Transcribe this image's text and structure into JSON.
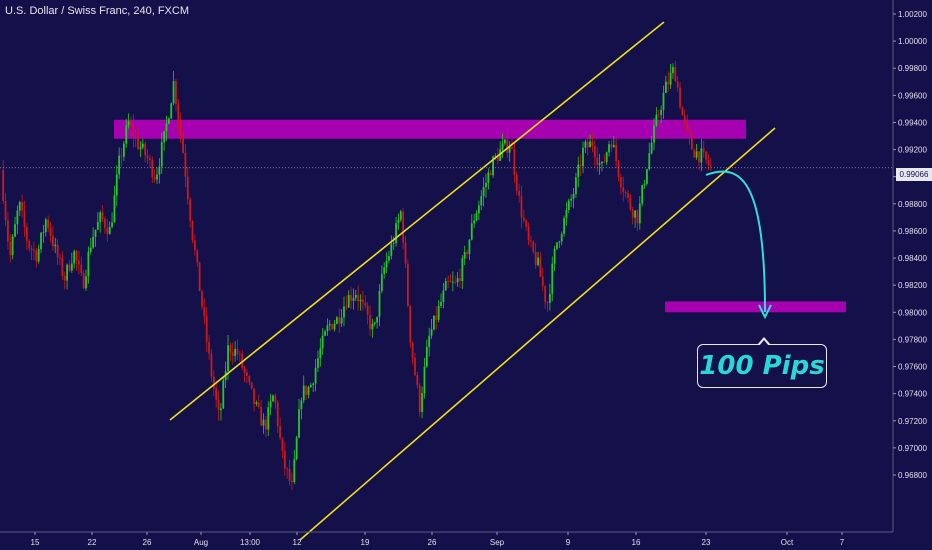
{
  "chart_data": {
    "type": "candlestick",
    "title": "U.S. Dollar / Swiss Franc, 240, FXCM",
    "x_tick_labels": [
      "15",
      "22",
      "26",
      "Aug",
      "13:00",
      "12",
      "19",
      "26",
      "Sep",
      "9",
      "16",
      "23",
      "Oct",
      "7"
    ],
    "y_tick_labels": [
      "1.00200",
      "1.00000",
      "0.99800",
      "0.99600",
      "0.99400",
      "0.99200",
      "0.99000",
      "0.98800",
      "0.98600",
      "0.98400",
      "0.98200",
      "0.98000",
      "0.97800",
      "0.97600",
      "0.97400",
      "0.97200",
      "0.97000",
      "0.96800"
    ],
    "ylim": [
      0.9665,
      1.0026
    ],
    "y_ticks": [
      1.002,
      1.0,
      0.998,
      0.996,
      0.994,
      0.992,
      0.99,
      0.988,
      0.986,
      0.984,
      0.982,
      0.98,
      0.978,
      0.976,
      0.974,
      0.972,
      0.97,
      0.968
    ],
    "current_price": "0.99066",
    "current_price_value": 0.99066,
    "bullish_color": "#22cc22",
    "bearish_color": "#d01818",
    "grid": false,
    "price_path": [
      [
        0.9905,
        0.9905
      ],
      [
        0.986,
        0.984
      ],
      [
        0.987,
        0.988
      ],
      [
        0.983,
        0.985
      ],
      [
        0.9825,
        0.9842
      ],
      [
        0.986,
        0.987
      ],
      [
        0.983,
        0.9845
      ],
      [
        0.981,
        0.9825
      ],
      [
        0.9835,
        0.9845
      ],
      [
        0.981,
        0.982
      ],
      [
        0.984,
        0.9855
      ],
      [
        0.986,
        0.987
      ],
      [
        0.985,
        0.986
      ],
      [
        0.99,
        0.991
      ],
      [
        0.993,
        0.994
      ],
      [
        0.992,
        0.9925
      ],
      [
        0.991,
        0.9915
      ],
      [
        0.99,
        0.99
      ],
      [
        0.992,
        0.993
      ],
      [
        0.9965,
        0.997
      ],
      [
        0.993,
        0.992
      ],
      [
        0.988,
        0.986
      ],
      [
        0.982,
        0.981
      ],
      [
        0.978,
        0.976
      ],
      [
        0.973,
        0.972
      ],
      [
        0.9755,
        0.9775
      ],
      [
        0.976,
        0.977
      ],
      [
        0.974,
        0.975
      ],
      [
        0.974,
        0.973
      ],
      [
        0.972,
        0.9715
      ],
      [
        0.973,
        0.974
      ],
      [
        0.97,
        0.969
      ],
      [
        0.968,
        0.967
      ],
      [
        0.972,
        0.974
      ],
      [
        0.973,
        0.9745
      ],
      [
        0.976,
        0.977
      ],
      [
        0.978,
        0.979
      ],
      [
        0.979,
        0.9795
      ],
      [
        0.98,
        0.981
      ],
      [
        0.9805,
        0.9815
      ],
      [
        0.979,
        0.98
      ],
      [
        0.979,
        0.9785
      ],
      [
        0.982,
        0.983
      ],
      [
        0.9835,
        0.985
      ],
      [
        0.987,
        0.9875
      ],
      [
        0.98,
        0.978
      ],
      [
        0.974,
        0.973
      ],
      [
        0.977,
        0.978
      ],
      [
        0.979,
        0.98
      ],
      [
        0.981,
        0.982
      ],
      [
        0.9815,
        0.982
      ],
      [
        0.983,
        0.984
      ],
      [
        0.986,
        0.987
      ],
      [
        0.988,
        0.989
      ],
      [
        0.99,
        0.991
      ],
      [
        0.991,
        0.992
      ],
      [
        0.992,
        0.9925
      ],
      [
        0.989,
        0.988
      ],
      [
        0.986,
        0.985
      ],
      [
        0.9845,
        0.9835
      ],
      [
        0.981,
        0.9805
      ],
      [
        0.984,
        0.985
      ],
      [
        0.986,
        0.987
      ],
      [
        0.988,
        0.989
      ],
      [
        0.991,
        0.992
      ],
      [
        0.992,
        0.9925
      ],
      [
        0.99,
        0.9905
      ],
      [
        0.992,
        0.993
      ],
      [
        0.991,
        0.99
      ],
      [
        0.989,
        0.988
      ],
      [
        0.988,
        0.987
      ],
      [
        0.99,
        0.991
      ],
      [
        0.993,
        0.994
      ],
      [
        0.995,
        0.9965
      ],
      [
        0.9975,
        0.998
      ],
      [
        0.995,
        0.994
      ],
      [
        0.993,
        0.992
      ],
      [
        0.991,
        0.9915
      ],
      [
        0.991,
        0.9907
      ]
    ],
    "annotations": {
      "resistance_zone": {
        "y_top": 0.9942,
        "y_bottom": 0.9928,
        "color": "#a600b0"
      },
      "target_zone": {
        "y_top": 0.9808,
        "y_bottom": 0.98,
        "color": "#a600b0"
      },
      "upper_channel_line": {
        "color": "#f0e010"
      },
      "lower_channel_line": {
        "color": "#f0e010"
      },
      "projection_arrow": {
        "color": "#2ee0d8"
      },
      "callout_text": "100 Pips"
    }
  }
}
